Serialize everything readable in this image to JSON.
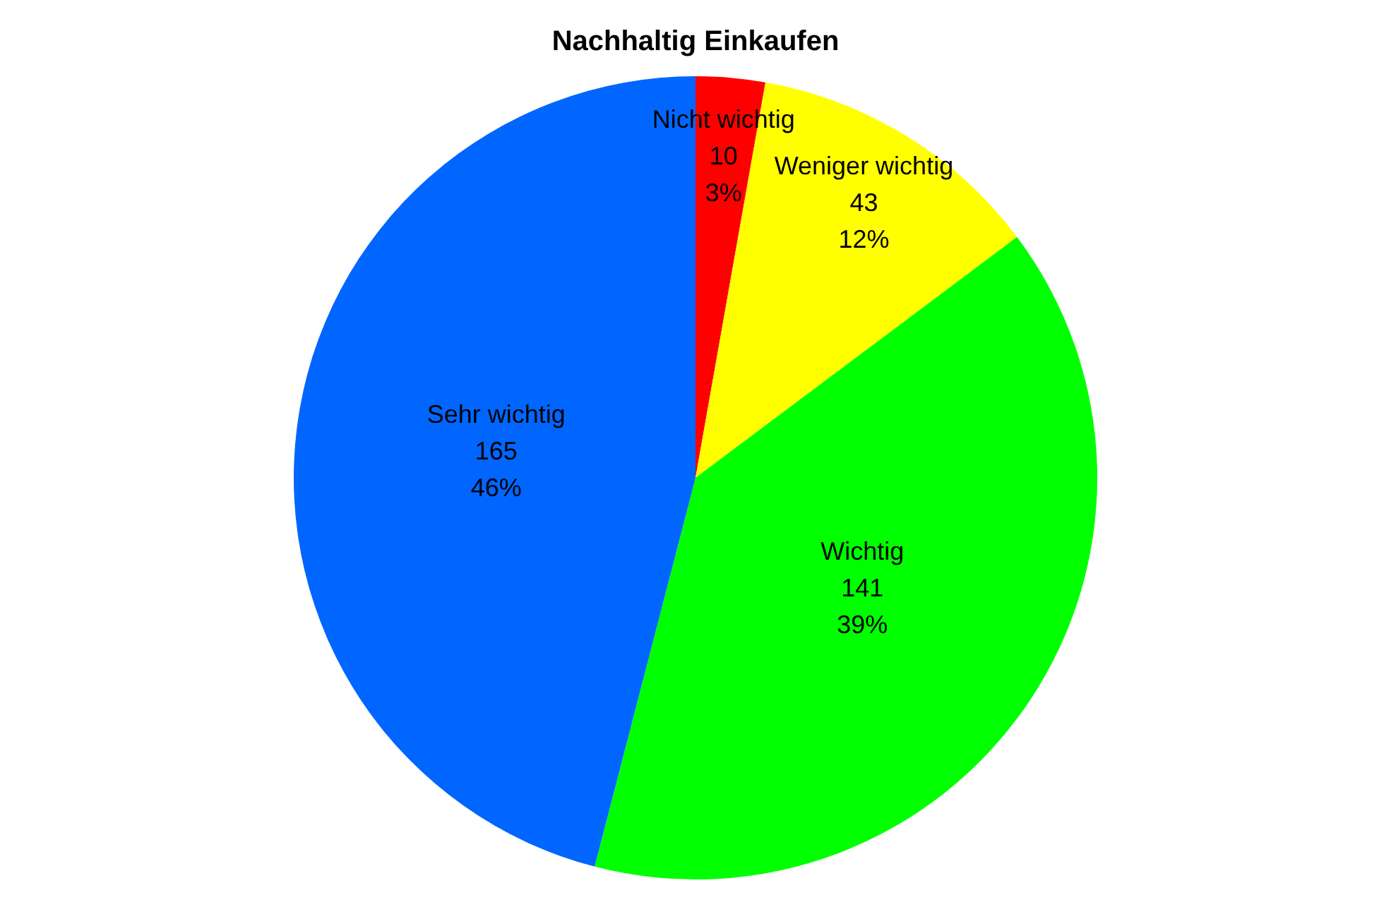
{
  "chart_data": {
    "type": "pie",
    "title": "Nachhaltig Einkaufen",
    "categories": [
      "Nicht wichtig",
      "Weniger wichtig",
      "Wichtig",
      "Sehr wichtig"
    ],
    "values": [
      10,
      43,
      141,
      165
    ],
    "colors": [
      "#ff0000",
      "#ffff00",
      "#00ff00",
      "#0066ff"
    ],
    "data_labels": true,
    "annotations": [
      {
        "text": "3%",
        "x": "Nicht wichtig"
      },
      {
        "text": "12%",
        "x": "Weniger wichtig"
      },
      {
        "text": "39%",
        "x": "Wichtig"
      },
      {
        "text": "46%",
        "x": "Sehr wichtig"
      }
    ],
    "legend": false
  }
}
